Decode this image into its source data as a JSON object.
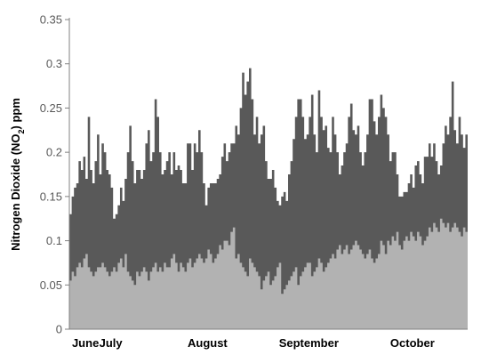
{
  "chart_data": {
    "type": "area",
    "ylabel": "Nitrogen Dioxide (NO2) ppm",
    "ylabel_parts": {
      "before": "Nitrogen Dioxide (NO",
      "sub": "2",
      "after": ") ppm"
    },
    "ylim": [
      0,
      0.35
    ],
    "yticks": [
      0,
      0.05,
      0.1,
      0.15,
      0.2,
      0.25,
      0.3,
      0.35
    ],
    "ytick_labels": [
      "0",
      "0.05",
      "0.1",
      "0.15",
      "0.2",
      "0.25",
      "0.3",
      "0.35"
    ],
    "grid": false,
    "legend": "none",
    "x_labels": [
      "June",
      "July",
      "August",
      "September",
      "October"
    ],
    "x_label_day_index": [
      7,
      18,
      60,
      104,
      149
    ],
    "series": [
      {
        "color": "#595959",
        "values": [
          0.13,
          0.15,
          0.16,
          0.165,
          0.19,
          0.18,
          0.195,
          0.17,
          0.24,
          0.18,
          0.165,
          0.19,
          0.22,
          0.175,
          0.21,
          0.2,
          0.18,
          0.175,
          0.16,
          0.125,
          0.13,
          0.14,
          0.16,
          0.145,
          0.17,
          0.2,
          0.23,
          0.19,
          0.165,
          0.18,
          0.18,
          0.17,
          0.18,
          0.21,
          0.225,
          0.19,
          0.2,
          0.26,
          0.24,
          0.2,
          0.175,
          0.18,
          0.19,
          0.2,
          0.175,
          0.2,
          0.18,
          0.185,
          0.18,
          0.165,
          0.165,
          0.21,
          0.21,
          0.18,
          0.21,
          0.2,
          0.225,
          0.2,
          0.165,
          0.14,
          0.16,
          0.165,
          0.165,
          0.165,
          0.17,
          0.175,
          0.195,
          0.21,
          0.19,
          0.2,
          0.21,
          0.21,
          0.23,
          0.22,
          0.25,
          0.29,
          0.265,
          0.28,
          0.295,
          0.26,
          0.22,
          0.24,
          0.21,
          0.22,
          0.23,
          0.19,
          0.17,
          0.17,
          0.18,
          0.16,
          0.145,
          0.14,
          0.15,
          0.155,
          0.145,
          0.175,
          0.19,
          0.215,
          0.24,
          0.26,
          0.26,
          0.24,
          0.215,
          0.22,
          0.24,
          0.265,
          0.22,
          0.2,
          0.27,
          0.24,
          0.225,
          0.23,
          0.205,
          0.2,
          0.24,
          0.22,
          0.2,
          0.175,
          0.185,
          0.2,
          0.21,
          0.24,
          0.255,
          0.225,
          0.22,
          0.23,
          0.2,
          0.185,
          0.2,
          0.22,
          0.26,
          0.26,
          0.235,
          0.22,
          0.24,
          0.265,
          0.25,
          0.24,
          0.22,
          0.19,
          0.2,
          0.2,
          0.175,
          0.15,
          0.15,
          0.155,
          0.155,
          0.165,
          0.175,
          0.16,
          0.185,
          0.19,
          0.175,
          0.165,
          0.195,
          0.195,
          0.21,
          0.195,
          0.21,
          0.19,
          0.175,
          0.185,
          0.21,
          0.23,
          0.22,
          0.24,
          0.28,
          0.225,
          0.21,
          0.24,
          0.22,
          0.205,
          0.22
        ]
      },
      {
        "color": "#b2b2b2",
        "values": [
          0.055,
          0.065,
          0.06,
          0.07,
          0.075,
          0.07,
          0.08,
          0.085,
          0.07,
          0.065,
          0.06,
          0.065,
          0.07,
          0.07,
          0.075,
          0.07,
          0.065,
          0.06,
          0.065,
          0.07,
          0.065,
          0.075,
          0.08,
          0.07,
          0.085,
          0.065,
          0.06,
          0.055,
          0.05,
          0.065,
          0.06,
          0.065,
          0.07,
          0.065,
          0.055,
          0.065,
          0.07,
          0.075,
          0.065,
          0.07,
          0.065,
          0.075,
          0.07,
          0.07,
          0.08,
          0.085,
          0.075,
          0.065,
          0.075,
          0.07,
          0.065,
          0.075,
          0.08,
          0.07,
          0.075,
          0.08,
          0.085,
          0.08,
          0.075,
          0.08,
          0.09,
          0.085,
          0.075,
          0.08,
          0.085,
          0.095,
          0.09,
          0.1,
          0.1,
          0.095,
          0.11,
          0.115,
          0.08,
          0.085,
          0.075,
          0.07,
          0.065,
          0.06,
          0.08,
          0.075,
          0.07,
          0.065,
          0.06,
          0.045,
          0.055,
          0.06,
          0.065,
          0.05,
          0.055,
          0.06,
          0.07,
          0.075,
          0.04,
          0.045,
          0.05,
          0.055,
          0.06,
          0.065,
          0.07,
          0.05,
          0.06,
          0.065,
          0.07,
          0.075,
          0.075,
          0.06,
          0.065,
          0.07,
          0.08,
          0.075,
          0.065,
          0.07,
          0.075,
          0.08,
          0.085,
          0.08,
          0.09,
          0.095,
          0.085,
          0.09,
          0.095,
          0.085,
          0.09,
          0.095,
          0.1,
          0.095,
          0.09,
          0.085,
          0.08,
          0.085,
          0.09,
          0.08,
          0.075,
          0.08,
          0.085,
          0.1,
          0.095,
          0.085,
          0.1,
          0.095,
          0.105,
          0.1,
          0.11,
          0.095,
          0.09,
          0.1,
          0.105,
          0.1,
          0.11,
          0.105,
          0.1,
          0.11,
          0.105,
          0.095,
          0.1,
          0.105,
          0.115,
          0.11,
          0.12,
          0.115,
          0.11,
          0.125,
          0.12,
          0.115,
          0.12,
          0.11,
          0.115,
          0.12,
          0.115,
          0.11,
          0.105,
          0.115,
          0.11
        ]
      }
    ]
  }
}
